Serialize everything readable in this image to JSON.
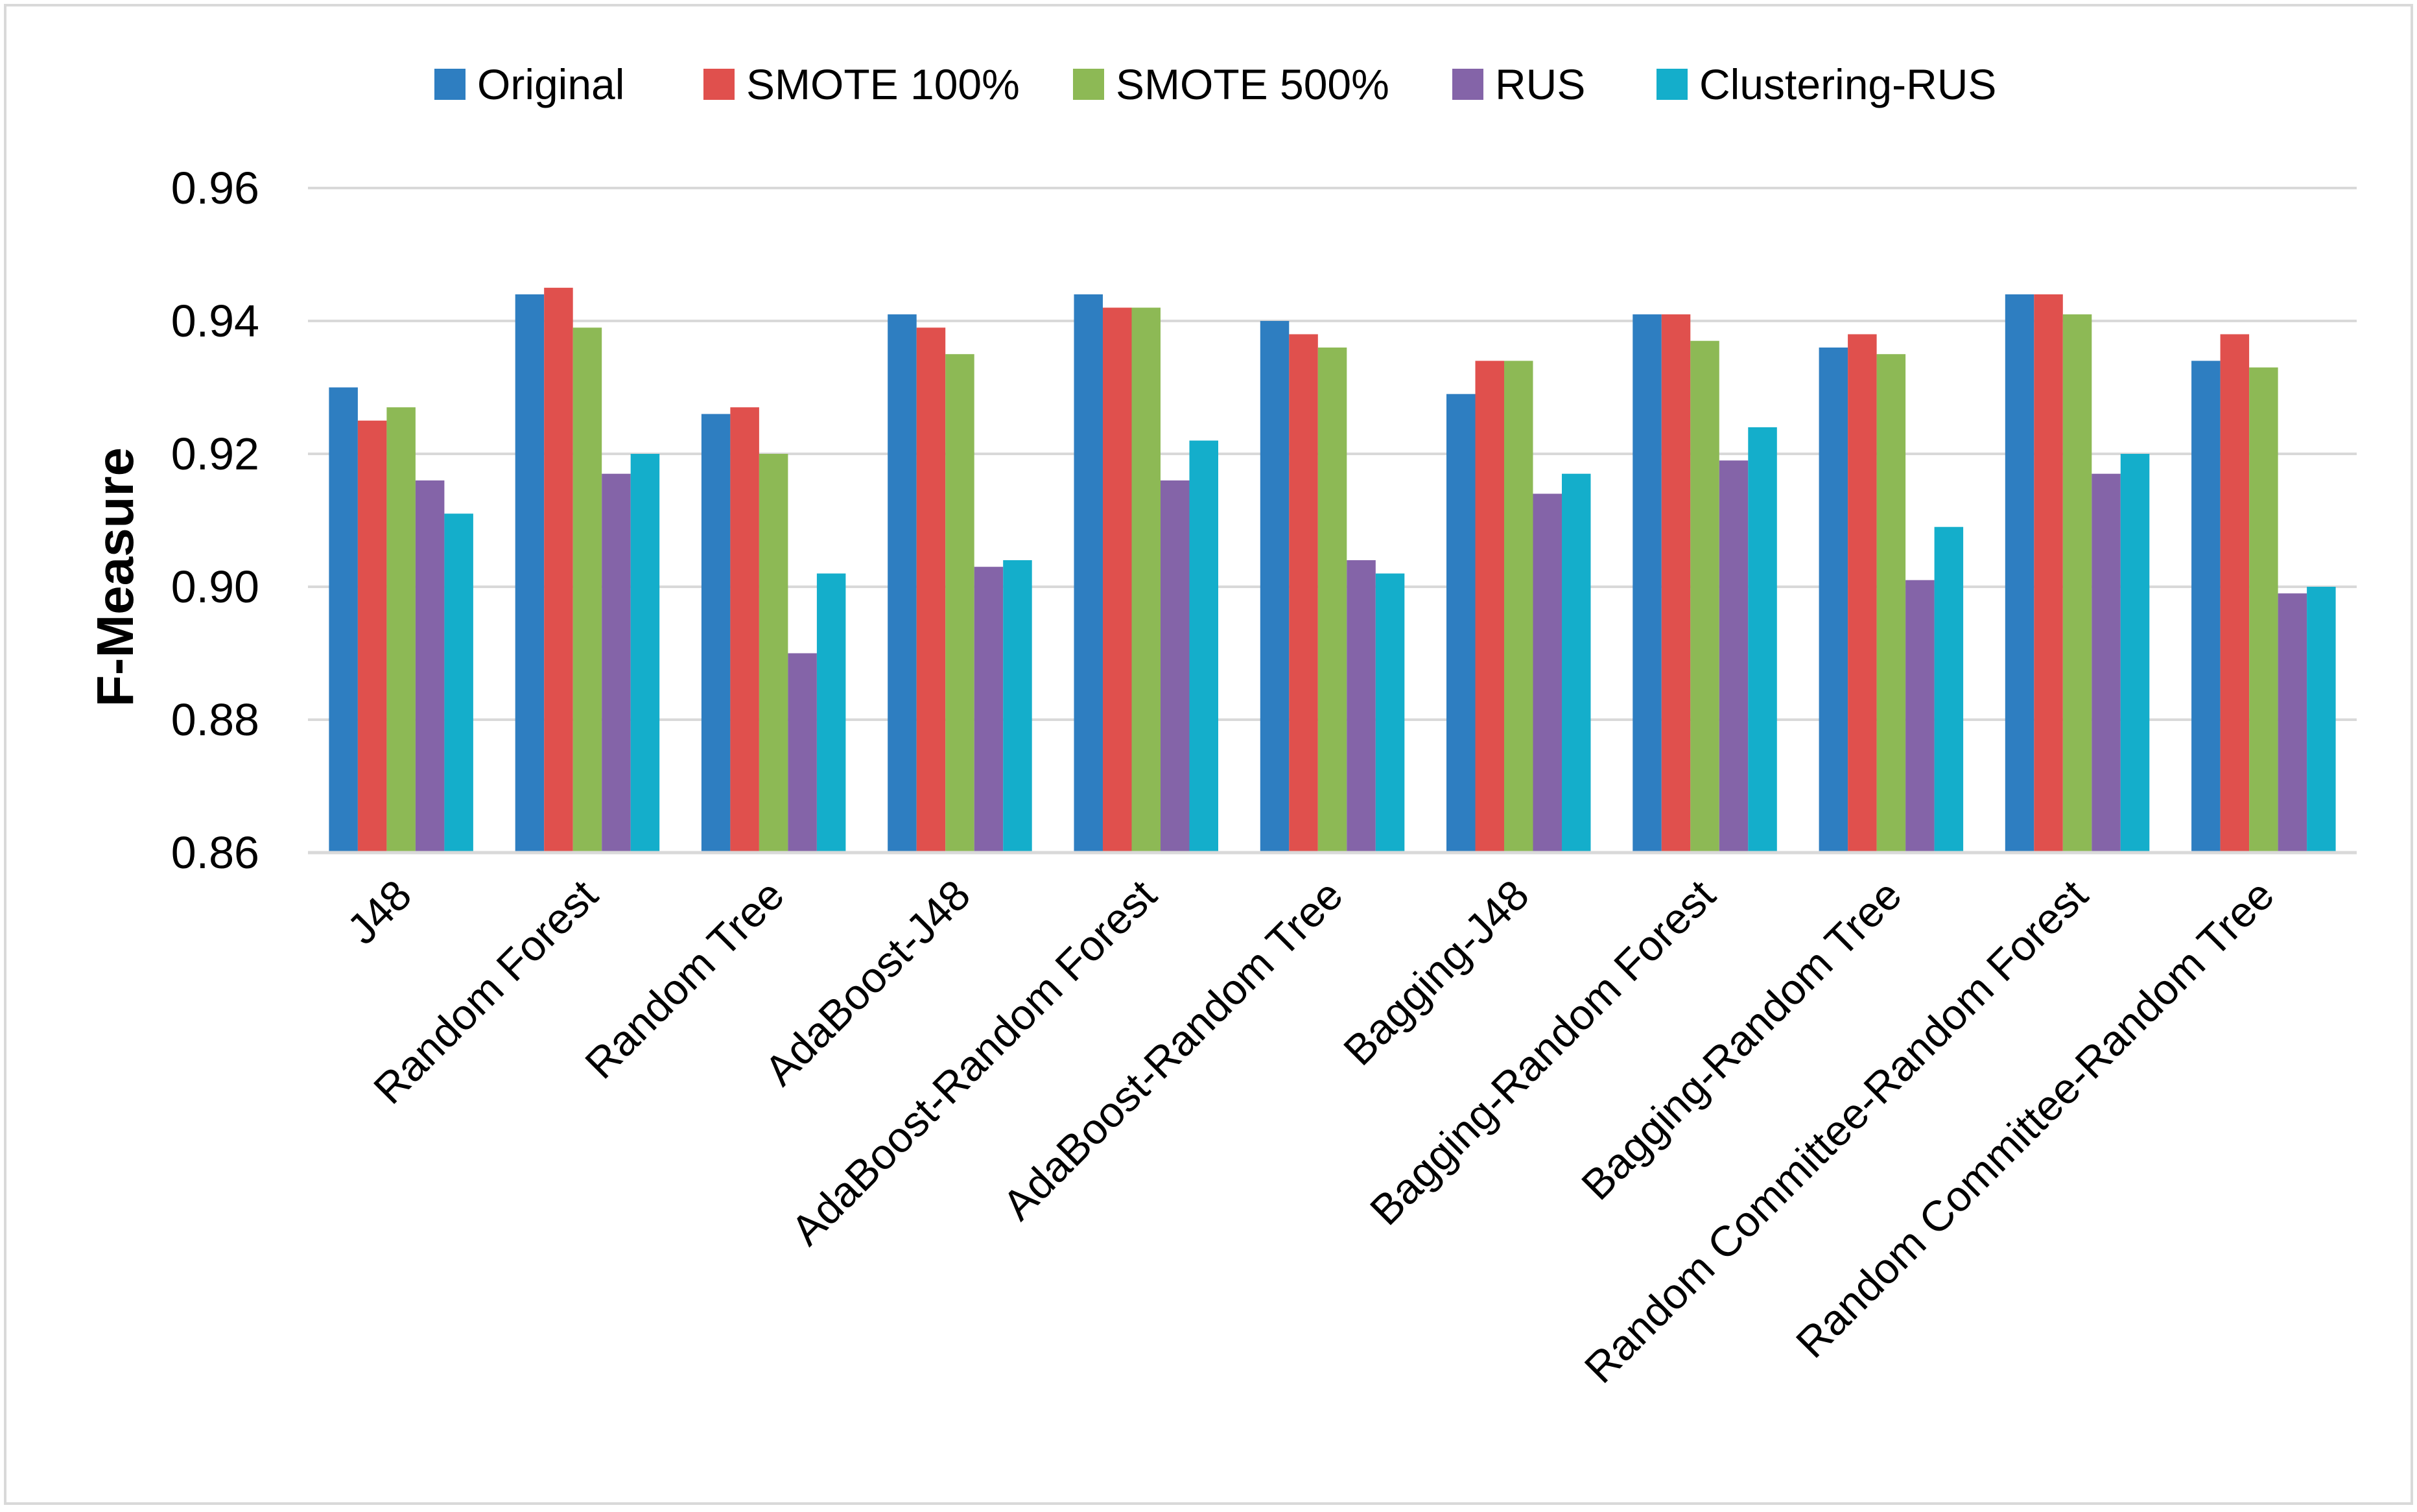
{
  "chart_data": {
    "type": "bar",
    "title": "",
    "xlabel": "",
    "ylabel": "F-Measure",
    "ylim": [
      0.86,
      0.96
    ],
    "yticks": [
      "0.86",
      "0.88",
      "0.90",
      "0.92",
      "0.94",
      "0.96"
    ],
    "grid": true,
    "legend_position": "top",
    "categories": [
      "J48",
      "Random Forest",
      "Random Tree",
      "AdaBoost-J48",
      "AdaBoost-Random Forest",
      "AdaBoost-Random Tree",
      "Bagging-J48",
      "Bagging-Random Forest",
      "Bagging-Random Tree",
      "Random Committee-Random Forest",
      "Random Committee-Random Tree"
    ],
    "series": [
      {
        "name": "Original",
        "color": "#2E7EC1",
        "values": [
          0.93,
          0.944,
          0.926,
          0.941,
          0.944,
          0.94,
          0.929,
          0.941,
          0.936,
          0.944,
          0.934
        ]
      },
      {
        "name": "SMOTE 100%",
        "color": "#E0504D",
        "values": [
          0.925,
          0.945,
          0.927,
          0.939,
          0.942,
          0.938,
          0.934,
          0.941,
          0.938,
          0.944,
          0.938
        ]
      },
      {
        "name": "SMOTE 500%",
        "color": "#8DB955",
        "values": [
          0.927,
          0.939,
          0.92,
          0.935,
          0.942,
          0.936,
          0.934,
          0.937,
          0.935,
          0.941,
          0.933
        ]
      },
      {
        "name": "RUS",
        "color": "#8464A8",
        "values": [
          0.916,
          0.917,
          0.89,
          0.903,
          0.916,
          0.904,
          0.914,
          0.919,
          0.901,
          0.917,
          0.899
        ]
      },
      {
        "name": "Clustering-RUS",
        "color": "#14AECB",
        "values": [
          0.911,
          0.92,
          0.902,
          0.904,
          0.922,
          0.902,
          0.917,
          0.924,
          0.909,
          0.92,
          0.9
        ]
      }
    ]
  }
}
